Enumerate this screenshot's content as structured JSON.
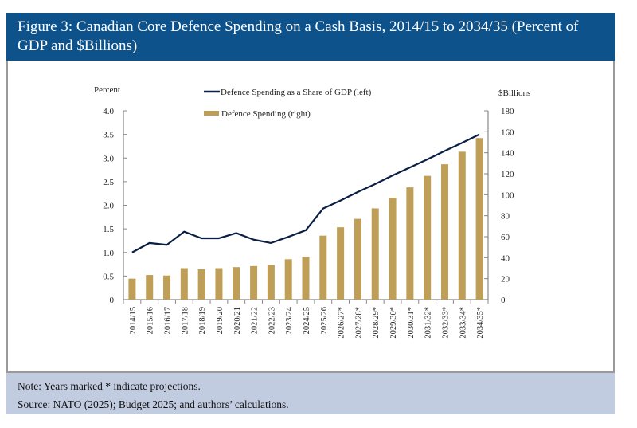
{
  "header": {
    "title": "Figure 3: Canadian Core Defence Spending on a Cash Basis, 2014/15 to 2034/35 (Percent of GDP and $Billions)"
  },
  "footer": {
    "note": "Note: Years marked * indicate projections.",
    "source": "Source: NATO (2025); Budget 2025; and authors’ calculations."
  },
  "colors": {
    "header_bg": "#0e528c",
    "line": "#0b1f45",
    "bar": "#bf9f58",
    "footer_bg": "#c2cce0"
  },
  "chart_data": {
    "type": "bar+line",
    "ylabel_left": "Percent",
    "ylabel_right": "$Billions",
    "ylim_left": [
      0,
      4.0
    ],
    "ylim_right": [
      0,
      180
    ],
    "yticks_left": [
      "0",
      "0.5",
      "1.0",
      "1.5",
      "2.0",
      "2.5",
      "3.0",
      "3.5",
      "4.0"
    ],
    "yticks_right": [
      "0",
      "20",
      "40",
      "60",
      "80",
      "100",
      "120",
      "140",
      "160",
      "180"
    ],
    "grid": false,
    "legend_placement": "top-center",
    "categories": [
      "2014/15",
      "2015/16",
      "2016/17",
      "2017/18",
      "2018/19",
      "2019/20",
      "2020/21",
      "2021/22",
      "2022/23",
      "2023/24",
      "2024/25",
      "2025/26",
      "2026/27*",
      "2027/28*",
      "2028/29*",
      "2029/30*",
      "2030/31*",
      "2031/32*",
      "2032/33*",
      "2033/34*",
      "2034/35*"
    ],
    "series": [
      {
        "name": "Defence Spending as a Share of GDP (left)",
        "type": "line",
        "axis": "left",
        "values": [
          1.0,
          1.2,
          1.16,
          1.44,
          1.3,
          1.3,
          1.41,
          1.27,
          1.2,
          1.33,
          1.47,
          1.93,
          2.1,
          2.28,
          2.45,
          2.63,
          2.8,
          2.97,
          3.15,
          3.32,
          3.5
        ]
      },
      {
        "name": "Defence Spending (right)",
        "type": "bar",
        "axis": "right",
        "values": [
          20,
          23.5,
          23,
          30,
          29,
          30,
          31,
          32,
          33,
          38.5,
          41,
          61,
          69,
          77,
          87,
          97,
          107,
          118,
          129,
          141,
          154
        ]
      }
    ]
  }
}
